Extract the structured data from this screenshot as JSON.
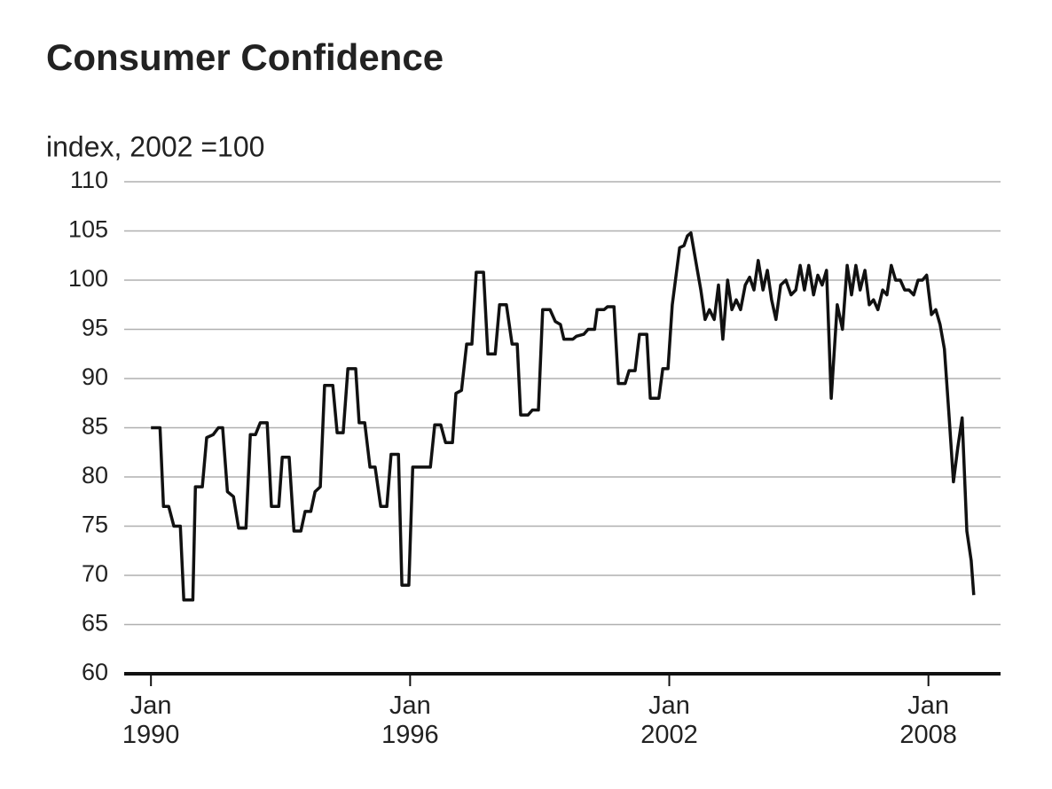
{
  "chart_data": {
    "type": "line",
    "title": "Consumer Confidence",
    "subtitle": "index, 2002 =100",
    "x": [
      1990.0,
      1990.21,
      1990.29,
      1990.41,
      1990.53,
      1990.68,
      1990.76,
      1990.97,
      1991.03,
      1991.19,
      1991.29,
      1991.44,
      1991.56,
      1991.66,
      1991.77,
      1991.91,
      1992.03,
      1992.2,
      1992.3,
      1992.42,
      1992.53,
      1992.69,
      1992.79,
      1992.96,
      1993.04,
      1993.2,
      1993.31,
      1993.47,
      1993.57,
      1993.7,
      1993.8,
      1993.92,
      1994.02,
      1994.21,
      1994.31,
      1994.45,
      1994.56,
      1994.74,
      1994.82,
      1994.95,
      1995.07,
      1995.19,
      1995.32,
      1995.46,
      1995.56,
      1995.73,
      1995.81,
      1995.97,
      1996.06,
      1996.22,
      1996.3,
      1996.47,
      1996.57,
      1996.71,
      1996.82,
      1996.98,
      1997.06,
      1997.19,
      1997.31,
      1997.43,
      1997.53,
      1997.7,
      1997.8,
      1997.97,
      1998.07,
      1998.23,
      1998.36,
      1998.48,
      1998.56,
      1998.73,
      1998.83,
      1998.97,
      1999.07,
      1999.24,
      1999.36,
      1999.48,
      1999.56,
      1999.77,
      1999.85,
      2000.02,
      2000.12,
      2000.27,
      2000.33,
      2000.49,
      2000.57,
      2000.72,
      2000.82,
      2000.98,
      2001.07,
      2001.21,
      2001.31,
      2001.48,
      2001.56,
      2001.76,
      2001.85,
      2001.97,
      2002.07,
      2002.24,
      2002.34,
      2002.42,
      2002.5,
      2002.65,
      2002.73,
      2002.83,
      2002.93,
      2003.04,
      2003.14,
      2003.24,
      2003.35,
      2003.45,
      2003.55,
      2003.65,
      2003.76,
      2003.86,
      2003.96,
      2004.06,
      2004.17,
      2004.27,
      2004.37,
      2004.47,
      2004.58,
      2004.7,
      2004.82,
      2004.93,
      2005.03,
      2005.13,
      2005.23,
      2005.34,
      2005.44,
      2005.54,
      2005.64,
      2005.75,
      2005.89,
      2006.01,
      2006.12,
      2006.22,
      2006.32,
      2006.42,
      2006.53,
      2006.63,
      2006.73,
      2006.83,
      2006.94,
      2007.04,
      2007.14,
      2007.24,
      2007.35,
      2007.45,
      2007.55,
      2007.66,
      2007.76,
      2007.86,
      2007.96,
      2008.07,
      2008.17,
      2008.27,
      2008.37,
      2008.48,
      2008.58,
      2008.68,
      2008.78,
      2008.89,
      2008.99,
      2009.05
    ],
    "values": [
      85,
      85,
      77,
      77,
      75,
      75,
      67.5,
      67.5,
      79,
      79,
      84,
      84.3,
      85,
      85,
      78.5,
      78,
      74.8,
      74.8,
      84.3,
      84.3,
      85.5,
      85.5,
      77,
      77,
      82,
      82,
      74.5,
      74.5,
      76.5,
      76.5,
      78.5,
      79,
      89.3,
      89.3,
      84.5,
      84.5,
      91,
      91,
      85.5,
      85.5,
      81,
      81,
      77,
      77,
      82.3,
      82.3,
      69,
      69,
      81,
      81,
      81,
      81,
      85.3,
      85.3,
      83.5,
      83.5,
      88.5,
      88.8,
      93.5,
      93.5,
      100.8,
      100.8,
      92.5,
      92.5,
      97.5,
      97.5,
      93.5,
      93.5,
      86.3,
      86.3,
      86.8,
      86.8,
      97,
      97,
      95.8,
      95.5,
      94,
      94,
      94.3,
      94.5,
      95,
      95,
      97,
      97,
      97.3,
      97.3,
      89.5,
      89.5,
      90.8,
      90.8,
      94.5,
      94.5,
      88,
      88,
      91,
      91,
      97.5,
      103.3,
      103.5,
      104.5,
      104.8,
      101,
      99,
      96,
      97,
      96,
      99.5,
      94,
      100,
      97,
      98,
      97,
      99.5,
      100.3,
      99,
      102,
      99,
      101,
      98,
      96,
      99.5,
      100,
      98.5,
      99,
      101.5,
      99,
      101.5,
      98.5,
      100.5,
      99.5,
      101,
      88,
      97.5,
      95,
      101.5,
      98.5,
      101.5,
      99,
      101,
      97.5,
      98,
      97,
      99,
      98.5,
      101.5,
      100,
      100,
      99,
      99,
      98.5,
      100,
      100,
      100.5,
      96.5,
      97,
      95.5,
      93,
      86,
      79.5,
      83,
      86,
      74.5,
      71.5,
      68
    ],
    "color": "#111111",
    "xlim": [
      1989.38,
      2009.67
    ],
    "xticks": [
      {
        "value": 1990,
        "label": "Jan 1990"
      },
      {
        "value": 1996,
        "label": "Jan 1996"
      },
      {
        "value": 2002,
        "label": "Jan 2002"
      },
      {
        "value": 2008,
        "label": "Jan 2008"
      }
    ],
    "ylim": [
      60,
      110
    ],
    "yticks": [
      60,
      65,
      70,
      75,
      80,
      85,
      90,
      95,
      100,
      105,
      110
    ],
    "grid": true
  }
}
